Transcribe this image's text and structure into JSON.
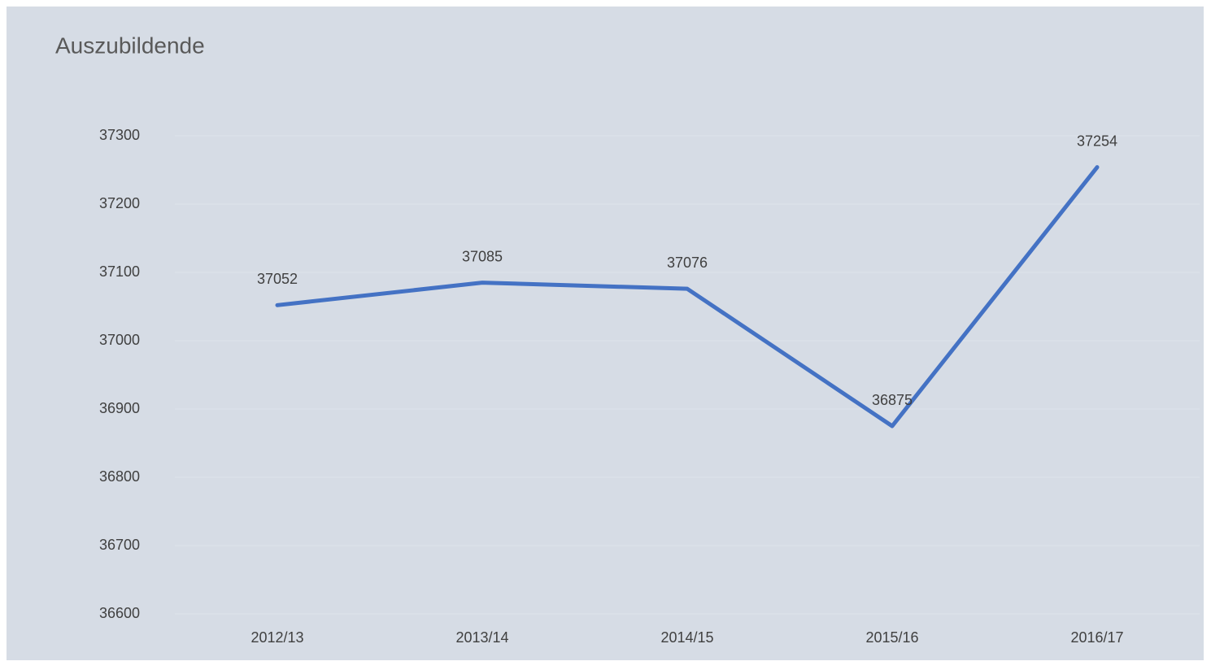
{
  "chart_data": {
    "type": "line",
    "title": "Auszubildende",
    "categories": [
      "2012/13",
      "2013/14",
      "2014/15",
      "2015/16",
      "2016/17"
    ],
    "values": [
      37052,
      37085,
      37076,
      36875,
      37254
    ],
    "color": "#4472c4",
    "ylim": [
      36600,
      37300
    ],
    "yticks": [
      36600,
      36700,
      36800,
      36900,
      37000,
      37100,
      37200,
      37300
    ],
    "grid": true
  }
}
